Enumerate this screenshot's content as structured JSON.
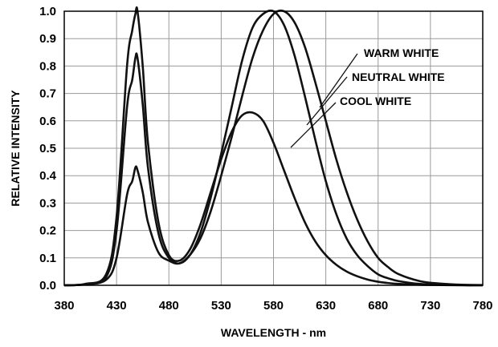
{
  "chart_data": {
    "type": "line",
    "xlabel": "WAVELENGTH - nm",
    "ylabel": "RELATIVE INTENSITY",
    "xlim": [
      380,
      780
    ],
    "ylim": [
      0,
      1.0
    ],
    "x_ticks": [
      "380",
      "430",
      "480",
      "530",
      "580",
      "630",
      "680",
      "730",
      "780"
    ],
    "y_ticks": [
      "0.0",
      "0.1",
      "0.2",
      "0.3",
      "0.4",
      "0.5",
      "0.6",
      "0.7",
      "0.8",
      "0.9",
      "1.0"
    ],
    "grid": true,
    "legend_position": "inline-right-with-leader-lines",
    "x": [
      380,
      400,
      420,
      430,
      440,
      445,
      448,
      450,
      455,
      460,
      470,
      480,
      490,
      500,
      510,
      520,
      530,
      540,
      550,
      560,
      570,
      580,
      590,
      600,
      610,
      620,
      630,
      640,
      650,
      660,
      670,
      680,
      690,
      700,
      720,
      740,
      760,
      780
    ],
    "series": [
      {
        "name": "WARM WHITE",
        "values": [
          0.0,
          0.003,
          0.02,
          0.1,
          0.33,
          0.38,
          0.43,
          0.42,
          0.34,
          0.23,
          0.12,
          0.09,
          0.08,
          0.11,
          0.17,
          0.27,
          0.4,
          0.54,
          0.69,
          0.83,
          0.93,
          0.99,
          1.0,
          0.96,
          0.87,
          0.74,
          0.6,
          0.46,
          0.34,
          0.24,
          0.16,
          0.1,
          0.065,
          0.04,
          0.015,
          0.006,
          0.002,
          0.001
        ]
      },
      {
        "name": "NEUTRAL WHITE",
        "values": [
          0.0,
          0.004,
          0.03,
          0.2,
          0.65,
          0.75,
          0.83,
          0.83,
          0.66,
          0.43,
          0.19,
          0.1,
          0.08,
          0.11,
          0.19,
          0.32,
          0.48,
          0.65,
          0.82,
          0.94,
          0.99,
          1.0,
          0.95,
          0.84,
          0.69,
          0.53,
          0.38,
          0.26,
          0.17,
          0.11,
          0.07,
          0.04,
          0.025,
          0.015,
          0.005,
          0.002,
          0.001,
          0.0
        ]
      },
      {
        "name": "COOL WHITE",
        "values": [
          0.0,
          0.005,
          0.04,
          0.25,
          0.8,
          0.93,
          0.99,
          1.0,
          0.8,
          0.52,
          0.23,
          0.11,
          0.09,
          0.13,
          0.22,
          0.34,
          0.46,
          0.56,
          0.62,
          0.63,
          0.6,
          0.52,
          0.42,
          0.32,
          0.23,
          0.16,
          0.11,
          0.075,
          0.05,
          0.033,
          0.021,
          0.013,
          0.008,
          0.005,
          0.002,
          0.001,
          0.0,
          0.0
        ]
      }
    ]
  }
}
